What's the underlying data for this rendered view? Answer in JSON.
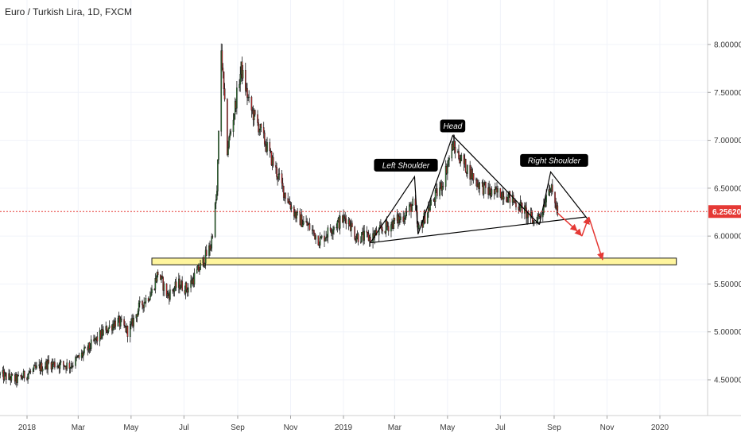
{
  "header": {
    "title": "Euro / Turkish Lira, 1D, FXCM"
  },
  "colors": {
    "up": "#2e7d32",
    "down": "#c62828",
    "wick": "#1a1a1a",
    "support_zone_fill": "#fff59d",
    "support_zone_stroke": "#1a1a1a",
    "price_line": "#e53935",
    "arrow": "#e53935",
    "label_bg": "#000000"
  },
  "chart_data": {
    "type": "candlestick",
    "symbol": "Euro / Turkish Lira",
    "interval": "1D",
    "source": "FXCM",
    "ylim": [
      4.2,
      8.5
    ],
    "y_ticks": [
      "8.00000",
      "7.50000",
      "7.00000",
      "6.50000",
      "6.00000",
      "5.50000",
      "5.00000",
      "4.50000"
    ],
    "y_tick_values": [
      8.0,
      7.5,
      7.0,
      6.5,
      6.0,
      5.5,
      5.0,
      4.5
    ],
    "x_ticks": [
      "2018",
      "Mar",
      "May",
      "Jul",
      "Sep",
      "Nov",
      "2019",
      "Mar",
      "May",
      "Jul",
      "Sep",
      "Nov",
      "2020"
    ],
    "x_tick_dates": [
      "2018-01-01",
      "2018-03-01",
      "2018-05-01",
      "2018-07-01",
      "2018-09-01",
      "2018-11-01",
      "2019-01-01",
      "2019-03-01",
      "2019-05-01",
      "2019-07-01",
      "2019-09-01",
      "2019-11-01",
      "2020-01-01"
    ],
    "x_range": [
      "2017-12-01",
      "2020-01-20"
    ],
    "current_price": {
      "label": "6.25620",
      "value": 6.2562
    },
    "price_path": [
      [
        "2017-12-01",
        4.55
      ],
      [
        "2017-12-20",
        4.5
      ],
      [
        "2018-01-05",
        4.58
      ],
      [
        "2018-01-25",
        4.67
      ],
      [
        "2018-02-20",
        4.65
      ],
      [
        "2018-03-10",
        4.8
      ],
      [
        "2018-03-28",
        4.98
      ],
      [
        "2018-04-15",
        5.12
      ],
      [
        "2018-04-28",
        5.0
      ],
      [
        "2018-05-10",
        5.25
      ],
      [
        "2018-05-25",
        5.42
      ],
      [
        "2018-06-01",
        5.62
      ],
      [
        "2018-06-12",
        5.38
      ],
      [
        "2018-06-25",
        5.5
      ],
      [
        "2018-07-05",
        5.45
      ],
      [
        "2018-07-20",
        5.68
      ],
      [
        "2018-08-01",
        5.9
      ],
      [
        "2018-08-08",
        6.45
      ],
      [
        "2018-08-13",
        7.95
      ],
      [
        "2018-08-20",
        6.9
      ],
      [
        "2018-08-28",
        7.3
      ],
      [
        "2018-09-05",
        7.75
      ],
      [
        "2018-09-15",
        7.35
      ],
      [
        "2018-09-25",
        7.15
      ],
      [
        "2018-10-08",
        6.85
      ],
      [
        "2018-10-25",
        6.45
      ],
      [
        "2018-11-08",
        6.2
      ],
      [
        "2018-11-22",
        6.1
      ],
      [
        "2018-12-05",
        5.95
      ],
      [
        "2018-12-20",
        6.1
      ],
      [
        "2019-01-05",
        6.2
      ],
      [
        "2019-01-15",
        6.0
      ],
      [
        "2019-02-01",
        5.98
      ],
      [
        "2019-02-20",
        6.1
      ],
      [
        "2019-03-10",
        6.2
      ],
      [
        "2019-03-24",
        6.35
      ],
      [
        "2019-03-28",
        6.05
      ],
      [
        "2019-04-10",
        6.3
      ],
      [
        "2019-04-25",
        6.55
      ],
      [
        "2019-05-07",
        6.95
      ],
      [
        "2019-05-20",
        6.75
      ],
      [
        "2019-06-05",
        6.55
      ],
      [
        "2019-06-20",
        6.45
      ],
      [
        "2019-07-05",
        6.45
      ],
      [
        "2019-07-25",
        6.3
      ],
      [
        "2019-08-08",
        6.15
      ],
      [
        "2019-08-18",
        6.25
      ],
      [
        "2019-08-26",
        6.55
      ],
      [
        "2019-09-05",
        6.26
      ]
    ],
    "support_zone": {
      "from": 5.7,
      "to": 5.77,
      "start": "2018-05-25",
      "end": "2020-01-20"
    },
    "neckline": [
      [
        "2019-02-01",
        5.93
      ],
      [
        "2019-10-08",
        6.2
      ]
    ],
    "pattern_lines": [
      [
        [
          "2019-02-01",
          5.93
        ],
        [
          "2019-03-24",
          6.62
        ],
        [
          "2019-03-28",
          6.02
        ]
      ],
      [
        [
          "2019-03-28",
          6.02
        ],
        [
          "2019-05-07",
          7.05
        ],
        [
          "2019-08-15",
          6.12
        ]
      ],
      [
        [
          "2019-08-15",
          6.12
        ],
        [
          "2019-08-28",
          6.67
        ],
        [
          "2019-10-12",
          6.15
        ]
      ]
    ],
    "annotations": [
      {
        "text": "Left Shoulder",
        "date": "2019-03-14",
        "price": 6.74
      },
      {
        "text": "Head",
        "date": "2019-05-07",
        "price": 7.15
      },
      {
        "text": "Right Shoulder",
        "date": "2019-09-01",
        "price": 6.79
      }
    ],
    "projection_arrows": [
      [
        [
          "2019-09-05",
          6.24
        ],
        [
          "2019-09-28",
          6.05
        ]
      ],
      [
        [
          "2019-09-28",
          6.05
        ],
        [
          "2019-10-03",
          6.0
        ]
      ],
      [
        [
          "2019-10-03",
          6.0
        ],
        [
          "2019-10-11",
          6.2
        ]
      ],
      [
        [
          "2019-10-11",
          6.2
        ],
        [
          "2019-10-27",
          5.75
        ]
      ]
    ]
  }
}
